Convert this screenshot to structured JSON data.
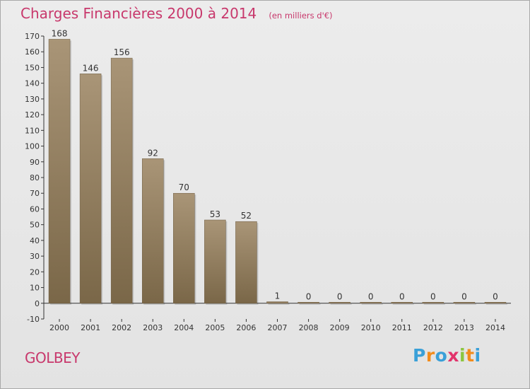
{
  "title": "Charges Financières 2000 à 2014",
  "subtitle": "(en milliers d'€)",
  "commune": "GOLBEY",
  "logo": {
    "letters": [
      "P",
      "r",
      "o",
      "x",
      "i",
      "t",
      "i"
    ],
    "colors": [
      "#3aa0d8",
      "#f28c1c",
      "#3aa0d8",
      "#e2336b",
      "#8cc63f",
      "#f28c1c",
      "#3aa0d8"
    ]
  },
  "colors": {
    "accent": "#c8386c",
    "bar_light": "#a99577",
    "bar_dark": "#7a6748"
  },
  "chart_data": {
    "type": "bar",
    "categories": [
      "2000",
      "2001",
      "2002",
      "2003",
      "2004",
      "2005",
      "2006",
      "2007",
      "2008",
      "2009",
      "2010",
      "2011",
      "2012",
      "2013",
      "2014"
    ],
    "values": [
      168,
      146,
      156,
      92,
      70,
      53,
      52,
      1,
      0,
      0,
      0,
      0,
      0,
      0,
      0
    ],
    "ylim": [
      -10,
      170
    ],
    "yticks": [
      -10,
      0,
      10,
      20,
      30,
      40,
      50,
      60,
      70,
      80,
      90,
      100,
      110,
      120,
      130,
      140,
      150,
      160,
      170
    ],
    "grid": false,
    "xlabel": "",
    "ylabel": ""
  }
}
